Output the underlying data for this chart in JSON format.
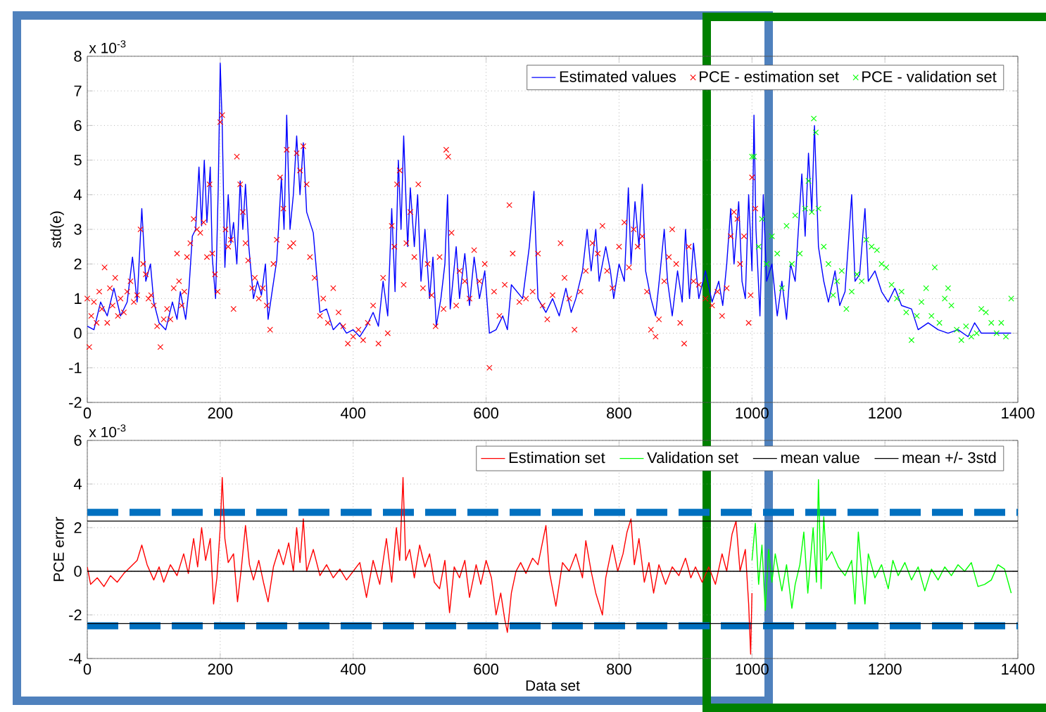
{
  "chart_data": [
    {
      "type": "line",
      "ylabel": "std(e)",
      "annotations": [
        "x 10$^{-3}$"
      ],
      "xlim": [
        0,
        1400
      ],
      "xticks": [
        0,
        200,
        400,
        600,
        800,
        1000,
        1200,
        1400
      ],
      "ylim": [
        -2,
        8
      ],
      "yticks": [
        -2,
        -1,
        0,
        1,
        2,
        3,
        4,
        5,
        6,
        7,
        8
      ],
      "grid": true,
      "legend": "top right",
      "series": [
        {
          "name": "Estimated values",
          "type": "line",
          "color": "#0000ff",
          "marker": "none",
          "x": [
            0,
            10,
            20,
            30,
            40,
            50,
            60,
            68,
            75,
            82,
            88,
            95,
            100,
            108,
            118,
            128,
            135,
            140,
            148,
            153,
            158,
            163,
            168,
            172,
            176,
            180,
            185,
            188,
            193,
            197,
            200,
            203,
            207,
            212,
            216,
            220,
            225,
            230,
            234,
            238,
            243,
            250,
            256,
            262,
            268,
            272,
            278,
            285,
            292,
            296,
            300,
            305,
            310,
            315,
            320,
            325,
            330,
            340,
            350,
            360,
            370,
            380,
            390,
            400,
            410,
            420,
            430,
            438,
            445,
            452,
            458,
            463,
            468,
            472,
            476,
            482,
            486,
            492,
            497,
            502,
            508,
            515,
            520,
            525,
            532,
            538,
            542,
            546,
            555,
            560,
            568,
            575,
            582,
            590,
            598,
            605,
            615,
            625,
            632,
            638,
            655,
            665,
            672,
            678,
            690,
            700,
            710,
            720,
            728,
            735,
            745,
            752,
            758,
            765,
            770,
            780,
            787,
            792,
            800,
            808,
            814,
            818,
            824,
            830,
            835,
            840,
            848,
            855,
            862,
            868,
            873,
            880,
            888,
            895,
            900,
            906,
            912,
            920,
            930,
            940,
            950,
            956,
            962,
            968,
            973,
            980,
            985,
            990,
            995,
            1000,
            1003,
            1006,
            1012,
            1017,
            1022,
            1030,
            1038,
            1045,
            1052,
            1058,
            1065,
            1075,
            1080,
            1085,
            1090,
            1094,
            1100,
            1108,
            1115,
            1125,
            1132,
            1140,
            1150,
            1155,
            1162,
            1170,
            1175,
            1185,
            1195,
            1205,
            1215,
            1225,
            1240,
            1250,
            1265,
            1280,
            1295,
            1310,
            1325,
            1335,
            1345,
            1380,
            1390
          ],
          "values": [
            0.2,
            0.1,
            0.9,
            0.5,
            1.3,
            0.5,
            0.9,
            2.2,
            0.9,
            3.6,
            1.5,
            2.0,
            0.9,
            0.3,
            0.1,
            0.9,
            0.4,
            1.2,
            0.4,
            1.3,
            2.8,
            3.0,
            4.8,
            3.1,
            5.0,
            3.2,
            4.8,
            2.2,
            1.0,
            4.2,
            7.8,
            6.0,
            1.9,
            4.0,
            2.6,
            3.2,
            2.0,
            4.4,
            3.0,
            4.3,
            2.5,
            1.0,
            1.5,
            1.1,
            2.0,
            0.4,
            1.2,
            2.1,
            4.5,
            3.0,
            6.3,
            3.0,
            4.0,
            5.7,
            4.0,
            5.5,
            3.5,
            2.9,
            0.6,
            0.7,
            0.1,
            0.3,
            0.0,
            0.1,
            -0.1,
            0.2,
            0.6,
            0.2,
            1.5,
            0.5,
            3.6,
            1.2,
            5.0,
            3.0,
            5.7,
            2.5,
            4.2,
            2.5,
            4.0,
            1.5,
            3.0,
            1.0,
            2.2,
            0.2,
            1.0,
            2.0,
            4.0,
            0.7,
            2.5,
            1.0,
            2.3,
            0.8,
            2.2,
            1.0,
            1.8,
            0.0,
            0.1,
            0.5,
            0.1,
            1.4,
            1.0,
            2.5,
            4.1,
            1.0,
            0.6,
            1.0,
            0.5,
            1.3,
            0.6,
            1.0,
            1.8,
            3.0,
            1.8,
            3.0,
            1.5,
            2.5,
            1.8,
            1.0,
            2.0,
            1.5,
            4.2,
            2.0,
            3.8,
            2.5,
            4.3,
            1.8,
            1.0,
            0.5,
            1.8,
            3.0,
            1.5,
            0.5,
            1.8,
            0.9,
            3.0,
            1.0,
            2.6,
            1.0,
            1.8,
            0.9,
            1.5,
            0.8,
            2.0,
            3.6,
            2.0,
            3.8,
            1.5,
            1.0,
            4.0,
            1.8,
            6.3,
            3.0,
            0.5,
            4.0,
            1.5,
            2.0,
            0.5,
            1.5,
            0.4,
            2.0,
            1.5,
            4.6,
            2.8,
            5.2,
            3.5,
            6.0,
            2.5,
            1.5,
            0.9,
            1.8,
            0.8,
            1.2,
            4.0,
            1.5,
            1.7,
            3.6,
            1.5,
            1.8,
            1.2,
            0.9,
            1.3,
            0.8,
            0.7,
            0.1,
            0.3,
            0.1,
            0.0,
            0.1,
            -0.1,
            0.3,
            0.0,
            0.0,
            0.0
          ]
        },
        {
          "name": "PCE - estimation set",
          "type": "scatter",
          "color": "#ff0000",
          "marker": "cross",
          "x": [
            0,
            3,
            6,
            10,
            14,
            18,
            22,
            26,
            30,
            34,
            38,
            42,
            46,
            50,
            55,
            60,
            65,
            70,
            75,
            80,
            84,
            88,
            92,
            96,
            100,
            105,
            110,
            115,
            120,
            125,
            130,
            135,
            138,
            142,
            146,
            150,
            155,
            160,
            165,
            170,
            175,
            180,
            184,
            188,
            192,
            196,
            200,
            203,
            208,
            212,
            216,
            220,
            225,
            230,
            234,
            238,
            242,
            248,
            252,
            258,
            264,
            270,
            275,
            280,
            285,
            290,
            295,
            300,
            305,
            310,
            315,
            320,
            325,
            330,
            335,
            342,
            350,
            355,
            362,
            370,
            378,
            385,
            392,
            400,
            408,
            415,
            422,
            430,
            438,
            445,
            452,
            458,
            462,
            466,
            470,
            476,
            480,
            486,
            492,
            498,
            505,
            512,
            518,
            524,
            530,
            536,
            540,
            543,
            548,
            555,
            560,
            568,
            575,
            582,
            590,
            598,
            605,
            612,
            620,
            628,
            635,
            640,
            650,
            660,
            670,
            678,
            685,
            692,
            700,
            712,
            718,
            725,
            733,
            742,
            750,
            760,
            768,
            775,
            782,
            790,
            800,
            808,
            815,
            822,
            828,
            835,
            842,
            848,
            855,
            860,
            868,
            875,
            880,
            886,
            892,
            898,
            905,
            912,
            920,
            930,
            940,
            948,
            955,
            962,
            968,
            973,
            978,
            982,
            988,
            995,
            998,
            1000,
            1005
          ],
          "values": [
            1.0,
            -0.4,
            0.5,
            0.9,
            0.3,
            1.2,
            0.7,
            1.9,
            0.3,
            1.3,
            0.8,
            1.6,
            0.5,
            1.0,
            0.6,
            1.2,
            1.5,
            0.9,
            1.1,
            3.0,
            2.0,
            1.7,
            1.0,
            1.1,
            0.8,
            0.2,
            -0.4,
            0.4,
            0.7,
            0.4,
            1.3,
            2.3,
            1.5,
            0.8,
            1.2,
            2.2,
            2.6,
            3.3,
            3.0,
            2.9,
            3.2,
            2.2,
            4.3,
            2.3,
            1.7,
            1.2,
            6.1,
            6.3,
            3.0,
            2.5,
            2.7,
            0.7,
            5.1,
            4.3,
            3.5,
            2.6,
            2.1,
            1.3,
            1.6,
            1.0,
            1.3,
            0.8,
            0.1,
            2.0,
            2.7,
            4.5,
            3.6,
            5.3,
            2.5,
            2.6,
            5.2,
            4.7,
            5.4,
            4.3,
            2.2,
            1.6,
            0.5,
            1.0,
            0.3,
            1.3,
            0.6,
            0.2,
            -0.3,
            -0.1,
            0.1,
            -0.2,
            0.3,
            0.8,
            -0.3,
            1.6,
            0.0,
            3.1,
            2.5,
            4.3,
            4.7,
            1.4,
            2.6,
            3.5,
            2.2,
            4.3,
            1.3,
            2.0,
            1.1,
            0.2,
            2.2,
            0.7,
            5.3,
            5.1,
            2.9,
            0.8,
            1.8,
            1.5,
            1.0,
            2.4,
            1.5,
            2.0,
            -1.0,
            1.2,
            0.5,
            1.4,
            3.7,
            2.3,
            0.9,
            1.0,
            1.2,
            2.3,
            0.8,
            0.4,
            1.1,
            2.6,
            1.6,
            1.0,
            0.1,
            1.2,
            1.8,
            2.6,
            2.3,
            3.1,
            1.8,
            1.3,
            2.5,
            3.2,
            1.9,
            3.0,
            2.5,
            2.8,
            1.2,
            0.1,
            -0.1,
            0.4,
            1.5,
            2.2,
            3.0,
            2.0,
            0.3,
            -0.3,
            2.5,
            1.5,
            1.4,
            1.0,
            0.8,
            1.2,
            0.5,
            1.3,
            2.8,
            3.5,
            3.3,
            2.0,
            2.8,
            0.3,
            1.1,
            4.5,
            3.6
          ]
        },
        {
          "name": "PCE - validation set",
          "type": "scatter",
          "color": "#00ff00",
          "marker": "cross",
          "x": [
            1000,
            1003,
            1010,
            1015,
            1022,
            1030,
            1038,
            1045,
            1052,
            1060,
            1065,
            1072,
            1080,
            1085,
            1090,
            1093,
            1096,
            1100,
            1108,
            1115,
            1122,
            1128,
            1135,
            1142,
            1150,
            1158,
            1165,
            1172,
            1180,
            1188,
            1195,
            1202,
            1210,
            1218,
            1225,
            1232,
            1240,
            1248,
            1255,
            1262,
            1270,
            1275,
            1282,
            1290,
            1295,
            1300,
            1308,
            1315,
            1322,
            1330,
            1338,
            1345,
            1352,
            1360,
            1368,
            1375,
            1382,
            1390
          ],
          "values": [
            5.1,
            5.1,
            2.5,
            3.3,
            2.0,
            2.8,
            2.3,
            1.3,
            3.1,
            2.0,
            3.4,
            2.3,
            3.6,
            4.4,
            3.5,
            6.2,
            5.8,
            3.6,
            2.5,
            2.0,
            1.1,
            1.5,
            1.8,
            0.7,
            1.2,
            1.7,
            1.5,
            2.7,
            2.5,
            2.4,
            2.0,
            1.9,
            1.4,
            1.0,
            1.2,
            0.6,
            -0.2,
            0.5,
            0.9,
            1.3,
            0.5,
            1.9,
            0.3,
            1.0,
            1.3,
            0.8,
            0.1,
            -0.2,
            0.2,
            -0.1,
            0.0,
            0.7,
            0.6,
            0.3,
            0.0,
            0.3,
            -0.1,
            1.0
          ]
        }
      ]
    },
    {
      "type": "line",
      "xlabel": "Data set",
      "ylabel": "PCE error",
      "annotations": [
        "x 10$^{-3}$"
      ],
      "xlim": [
        0,
        1400
      ],
      "xticks": [
        0,
        200,
        400,
        600,
        800,
        1000,
        1200,
        1400
      ],
      "ylim": [
        -4,
        6
      ],
      "yticks": [
        -4,
        -2,
        0,
        2,
        4,
        6
      ],
      "grid": true,
      "legend": "top right",
      "ref_lines": [
        {
          "axis": "y",
          "value": 2.7,
          "color": "#0070c0",
          "line_style": "dashed"
        },
        {
          "axis": "y",
          "value": -2.5,
          "color": "#0070c0",
          "line_style": "dashed"
        }
      ],
      "series": [
        {
          "name": "Estimation set",
          "color": "#ff0000",
          "x": [
            0,
            5,
            15,
            25,
            35,
            45,
            55,
            65,
            75,
            82,
            90,
            100,
            108,
            115,
            125,
            135,
            145,
            152,
            160,
            166,
            172,
            178,
            185,
            190,
            195,
            200,
            203,
            207,
            212,
            220,
            226,
            232,
            238,
            244,
            250,
            258,
            265,
            272,
            280,
            288,
            295,
            303,
            310,
            315,
            320,
            325,
            330,
            340,
            350,
            360,
            370,
            380,
            390,
            400,
            410,
            420,
            430,
            440,
            450,
            458,
            465,
            470,
            475,
            479,
            485,
            492,
            500,
            508,
            515,
            522,
            530,
            538,
            545,
            552,
            560,
            568,
            575,
            585,
            592,
            600,
            608,
            615,
            622,
            628,
            632,
            638,
            645,
            652,
            660,
            670,
            678,
            690,
            695,
            705,
            715,
            725,
            735,
            745,
            750,
            758,
            765,
            775,
            780,
            790,
            798,
            806,
            812,
            818,
            823,
            830,
            838,
            845,
            852,
            860,
            870,
            880,
            890,
            900,
            908,
            915,
            925,
            935,
            945,
            955,
            962,
            970,
            976,
            982,
            990,
            995,
            998,
            1000
          ],
          "values": [
            0.2,
            -0.6,
            -0.3,
            -0.7,
            -0.2,
            -0.5,
            -0.1,
            0.2,
            0.5,
            1.2,
            0.3,
            -0.4,
            0.2,
            -0.5,
            0.3,
            -0.2,
            0.8,
            -0.1,
            1.5,
            0.2,
            2.0,
            0.5,
            1.5,
            -1.5,
            -0.3,
            2.0,
            4.3,
            1.5,
            0.4,
            0.8,
            -1.4,
            0.2,
            2.1,
            0.3,
            -0.4,
            0.5,
            -0.5,
            -1.4,
            0.2,
            1.0,
            0.3,
            1.3,
            0.0,
            2.0,
            0.4,
            2.4,
            0.0,
            1.0,
            -0.2,
            0.3,
            -0.3,
            0.1,
            -0.4,
            0.0,
            0.4,
            -1.2,
            0.5,
            -0.6,
            1.5,
            -0.5,
            2.0,
            0.5,
            4.3,
            0.5,
            1.0,
            -0.3,
            1.2,
            0.2,
            0.8,
            -0.5,
            -0.8,
            0.5,
            -1.9,
            0.2,
            -0.3,
            0.5,
            -1.2,
            0.3,
            -0.6,
            0.5,
            -0.3,
            -2.0,
            -1.0,
            -2.2,
            -2.8,
            -1.0,
            0.0,
            0.4,
            -0.1,
            0.6,
            0.3,
            2.1,
            0.0,
            -1.6,
            0.4,
            0.0,
            0.8,
            -0.3,
            1.4,
            0.0,
            -1.0,
            -2.0,
            -0.3,
            1.2,
            0.0,
            0.8,
            1.8,
            2.4,
            0.3,
            1.5,
            -0.5,
            0.4,
            -1.0,
            0.3,
            -0.6,
            0.2,
            -0.2,
            0.6,
            -0.3,
            0.2,
            -0.5,
            0.2,
            -0.6,
            0.8,
            0.0,
            1.7,
            2.3,
            0.0,
            1.0,
            -1.5,
            -3.8,
            -1.0
          ]
        },
        {
          "name": "Validation set",
          "color": "#00ff00",
          "x": [
            1000,
            1005,
            1010,
            1015,
            1020,
            1025,
            1030,
            1035,
            1045,
            1052,
            1060,
            1065,
            1072,
            1078,
            1084,
            1088,
            1092,
            1097,
            1100,
            1104,
            1108,
            1112,
            1120,
            1130,
            1140,
            1150,
            1155,
            1160,
            1165,
            1170,
            1175,
            1185,
            1195,
            1205,
            1212,
            1220,
            1230,
            1240,
            1250,
            1260,
            1270,
            1280,
            1290,
            1300,
            1310,
            1320,
            1330,
            1340,
            1350,
            1360,
            1370,
            1380,
            1390
          ],
          "values": [
            0.5,
            2.2,
            -0.6,
            1.2,
            -1.8,
            1.0,
            -0.5,
            0.8,
            -0.9,
            0.3,
            -1.7,
            -0.6,
            0.3,
            1.8,
            -1.0,
            0.5,
            2.0,
            -0.5,
            4.2,
            -0.8,
            2.5,
            0.5,
            0.9,
            0.2,
            -0.2,
            0.5,
            -1.5,
            1.8,
            0.0,
            -1.5,
            0.8,
            -0.3,
            0.3,
            -0.8,
            0.5,
            -0.2,
            0.4,
            -0.4,
            0.2,
            -0.9,
            0.1,
            -0.4,
            0.2,
            -0.2,
            0.3,
            0.0,
            0.4,
            -0.7,
            -0.6,
            -0.4,
            0.3,
            0.1,
            -1.0
          ]
        },
        {
          "name": "mean value",
          "color": "#000000",
          "x": [
            0,
            1400
          ],
          "values": [
            0,
            0
          ]
        },
        {
          "name": "mean +/- 3std",
          "color": "#000000",
          "x": [
            0,
            1400
          ],
          "values": [
            2.3,
            2.3
          ]
        },
        {
          "color": "#000000",
          "x": [
            0,
            1400
          ],
          "values": [
            -2.4,
            -2.4
          ]
        }
      ]
    }
  ]
}
